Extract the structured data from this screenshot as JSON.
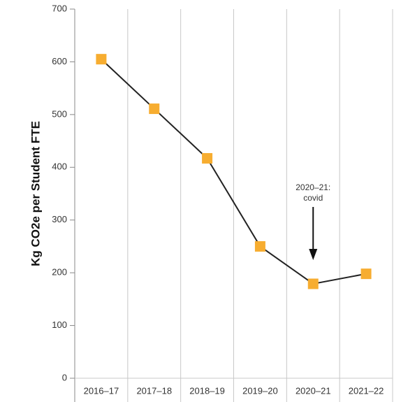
{
  "chart_data": {
    "type": "line",
    "y_label": "Kg CO2e per Student FTE",
    "categories": [
      "2016–17",
      "2017–18",
      "2018–19",
      "2019–20",
      "2020–21",
      "2021–22"
    ],
    "series": [
      {
        "name": null,
        "color": "#222222",
        "marker_color": "#f7ad30",
        "values": [
          605,
          511,
          417,
          250,
          179,
          198
        ]
      }
    ],
    "ylim": [
      0,
      700
    ],
    "yticks": [
      0,
      100,
      200,
      300,
      400,
      500,
      600,
      700
    ],
    "grid": true,
    "annotation": {
      "lines": [
        "2020–21:",
        "covid"
      ]
    }
  }
}
